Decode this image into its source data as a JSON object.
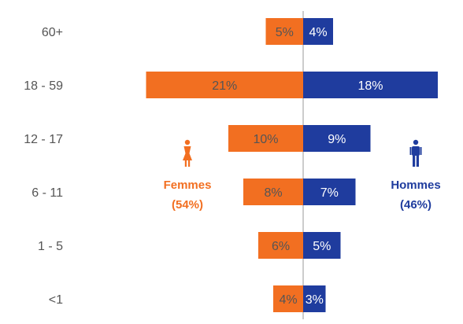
{
  "chart_data": {
    "type": "bar",
    "orientation": "horizontal-pyramid",
    "categories": [
      "60+",
      "18 - 59",
      "12 - 17",
      "6 - 11",
      "1 - 5",
      "<1"
    ],
    "series": [
      {
        "name": "Femmes",
        "share": "(54%)",
        "color": "#f26f21",
        "side": "left",
        "values": [
          5,
          21,
          10,
          8,
          6,
          4
        ],
        "labels": [
          "5%",
          "21%",
          "10%",
          "8%",
          "6%",
          "4%"
        ]
      },
      {
        "name": "Hommes",
        "share": "(46%)",
        "color": "#1f3c9e",
        "side": "right",
        "values": [
          4,
          18,
          9,
          7,
          5,
          3
        ],
        "labels": [
          "4%",
          "18%",
          "9%",
          "7%",
          "5%",
          "3%"
        ]
      }
    ],
    "value_unit": "%",
    "grid": false,
    "axis_center_line": true,
    "legend": {
      "femmes_icon": "female-person-icon",
      "hommes_icon": "male-person-icon"
    }
  },
  "colors": {
    "label_text": "#555555",
    "on_orange_text": "#555555",
    "on_blue_text": "#ffffff",
    "center_line": "#cccccc"
  }
}
